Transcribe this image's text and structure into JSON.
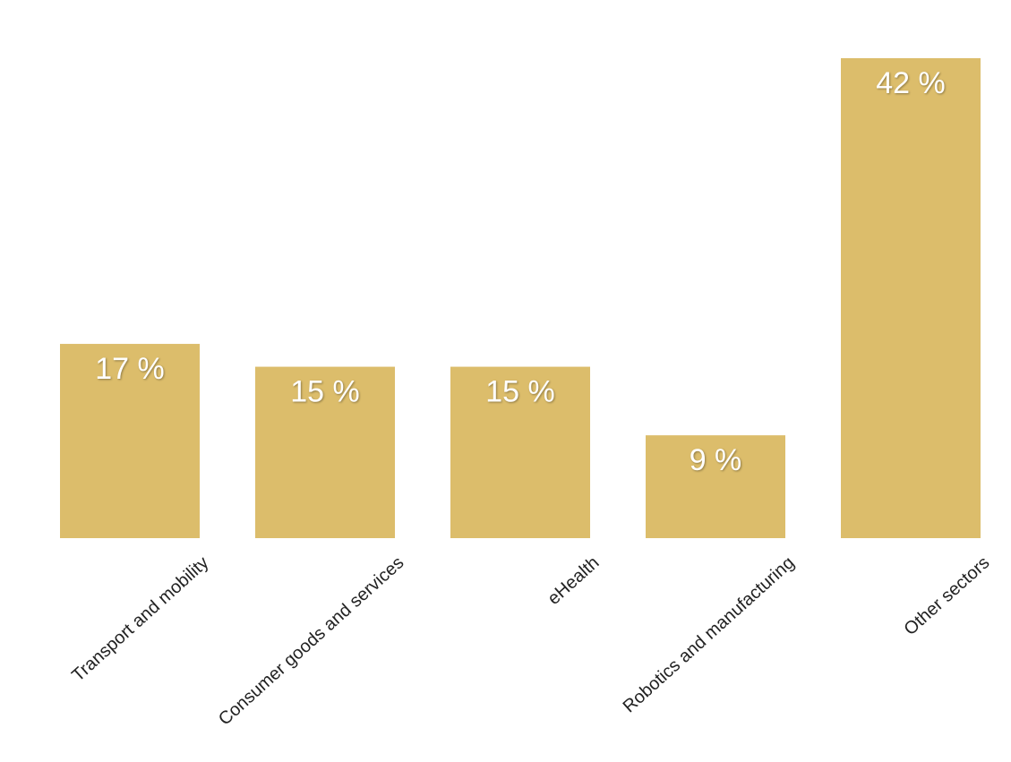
{
  "chart_data": {
    "type": "bar",
    "title": "",
    "xlabel": "",
    "ylabel": "",
    "categories": [
      "Transport and mobility",
      "Consumer goods and services",
      "eHealth",
      "Robotics and manufacturing",
      "Other sectors"
    ],
    "values": [
      17,
      15,
      15,
      9,
      42
    ],
    "value_labels": [
      "17 %",
      "15 %",
      "15 %",
      "9 %",
      "42 %"
    ],
    "unit": "%",
    "ylim": [
      0,
      42
    ],
    "grid": false,
    "legend": "none",
    "bar_color": "#dcbd6b",
    "value_label_color": "#ffffff"
  }
}
